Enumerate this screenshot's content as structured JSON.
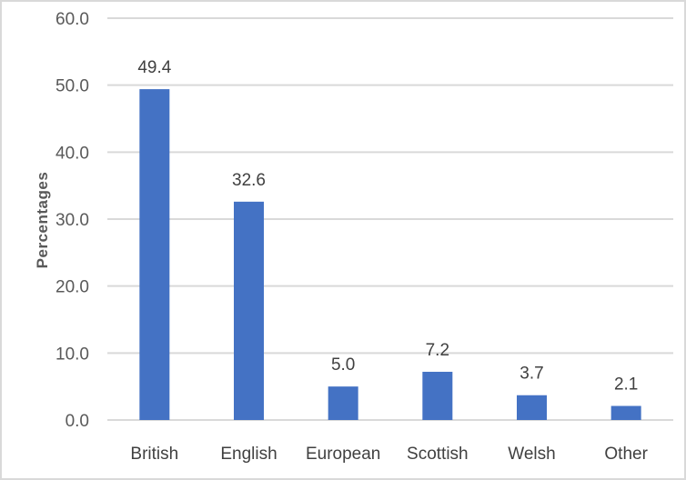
{
  "chart_data": {
    "type": "bar",
    "title": "",
    "xlabel": "",
    "ylabel": "Percentages",
    "categories": [
      "British",
      "English",
      "European",
      "Scottish",
      "Welsh",
      "Other"
    ],
    "values": [
      49.4,
      32.6,
      5.0,
      7.2,
      3.7,
      2.1
    ],
    "data_labels": [
      "49.4",
      "32.6",
      "5.0",
      "7.2",
      "3.7",
      "2.1"
    ],
    "y_ticks": [
      "0.0",
      "10.0",
      "20.0",
      "30.0",
      "40.0",
      "50.0",
      "60.0"
    ],
    "ylim": [
      0,
      60
    ],
    "grid": true,
    "legend": "none",
    "bar_color": "#4472c4",
    "grid_color": "#d9d9d9"
  }
}
